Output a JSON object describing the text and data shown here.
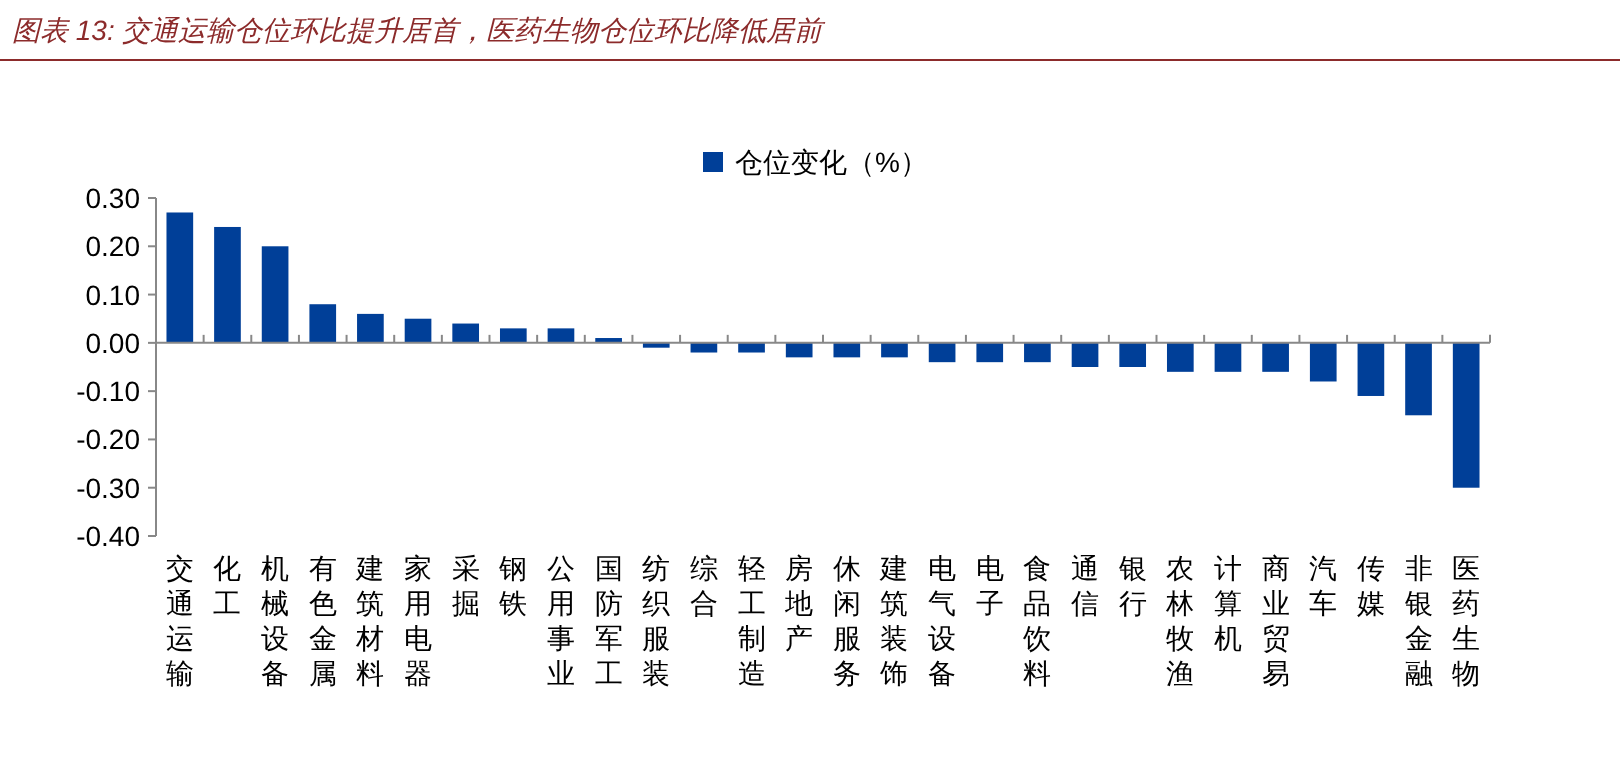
{
  "chart_data": {
    "type": "bar",
    "title": "图表 13:  交通运输仓位环比提升居首，医药生物仓位环比降低居前",
    "categories": [
      "交通运输",
      "化工",
      "机械设备",
      "有色金属",
      "建筑材料",
      "家用电器",
      "采掘",
      "钢铁",
      "公用事业",
      "国防军工",
      "纺织服装",
      "综合",
      "轻工制造",
      "房地产",
      "休闲服务",
      "建筑装饰",
      "电气设备",
      "电子",
      "食品饮料",
      "通信",
      "银行",
      "农林牧渔",
      "计算机",
      "商业贸易",
      "汽车",
      "传媒",
      "非银金融",
      "医药生物"
    ],
    "series": [
      {
        "name": "仓位变化（%）",
        "color": "#003f98",
        "values": [
          0.27,
          0.24,
          0.2,
          0.08,
          0.06,
          0.05,
          0.04,
          0.03,
          0.03,
          0.01,
          -0.01,
          -0.02,
          -0.02,
          -0.03,
          -0.03,
          -0.03,
          -0.04,
          -0.04,
          -0.04,
          -0.05,
          -0.05,
          -0.06,
          -0.06,
          -0.06,
          -0.08,
          -0.11,
          -0.15,
          -0.3
        ]
      }
    ],
    "ylim": [
      -0.4,
      0.3
    ],
    "yticks": [
      {
        "value": -0.4,
        "label": "-0.40"
      },
      {
        "value": -0.3,
        "label": "-0.30"
      },
      {
        "value": -0.2,
        "label": "-0.20"
      },
      {
        "value": -0.1,
        "label": "-0.10"
      },
      {
        "value": 0,
        "label": "0.00"
      },
      {
        "value": 0.1,
        "label": "0.10"
      },
      {
        "value": 0.2,
        "label": "0.20"
      },
      {
        "value": 0.3,
        "label": "0.30"
      }
    ],
    "legend": "top"
  }
}
